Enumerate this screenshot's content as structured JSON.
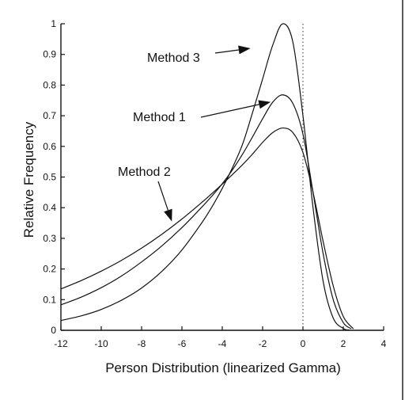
{
  "chart_data": {
    "type": "line",
    "title": "",
    "xlabel": "Person Distribution (linearized Gamma)",
    "ylabel": "Relative Frequency",
    "xlim": [
      -12,
      4
    ],
    "ylim": [
      0,
      1
    ],
    "x_ticks": [
      -12,
      -10,
      -8,
      -6,
      -4,
      -2,
      0,
      2,
      4
    ],
    "y_ticks": [
      0,
      0.1,
      0.2,
      0.3,
      0.4,
      0.5,
      0.6,
      0.7,
      0.8,
      0.9,
      1
    ],
    "reference_line_x": 0,
    "grid": false,
    "series": [
      {
        "name": "Method 1",
        "x": [
          -12,
          -11,
          -10,
          -9,
          -8,
          -7,
          -6,
          -5,
          -4.5,
          -4,
          -3.5,
          -3,
          -2.5,
          -2,
          -1.5,
          -1,
          -0.5,
          0,
          0.5,
          1,
          1.5,
          2,
          2.4
        ],
        "values": [
          0.083,
          0.108,
          0.139,
          0.177,
          0.223,
          0.275,
          0.335,
          0.403,
          0.439,
          0.478,
          0.523,
          0.574,
          0.631,
          0.69,
          0.744,
          0.768,
          0.74,
          0.64,
          0.45,
          0.25,
          0.1,
          0.025,
          0.005
        ]
      },
      {
        "name": "Method 2",
        "x": [
          -12,
          -11,
          -10,
          -9,
          -8,
          -7,
          -6,
          -5,
          -4.5,
          -4,
          -3.5,
          -3,
          -2.5,
          -2,
          -1.5,
          -1,
          -0.5,
          0,
          0.5,
          1,
          1.5,
          2,
          2.5
        ],
        "values": [
          0.135,
          0.162,
          0.193,
          0.228,
          0.268,
          0.313,
          0.363,
          0.418,
          0.447,
          0.477,
          0.508,
          0.54,
          0.575,
          0.613,
          0.645,
          0.66,
          0.645,
          0.58,
          0.45,
          0.29,
          0.145,
          0.045,
          0.005
        ]
      },
      {
        "name": "Method 3",
        "x": [
          -12,
          -11,
          -10,
          -9,
          -8,
          -7,
          -6,
          -5,
          -4.5,
          -4,
          -3.5,
          -3,
          -2.5,
          -2,
          -1.5,
          -1,
          -0.5,
          0,
          0.5,
          1,
          1.5,
          2,
          2.3
        ],
        "values": [
          0.032,
          0.047,
          0.068,
          0.098,
          0.138,
          0.192,
          0.262,
          0.352,
          0.404,
          0.463,
          0.53,
          0.606,
          0.71,
          0.82,
          0.93,
          1.0,
          0.94,
          0.7,
          0.4,
          0.16,
          0.04,
          0.006,
          0.001
        ]
      }
    ],
    "annotations": [
      {
        "text": "Method 3",
        "target": "Method 3",
        "arrow_to": [
          -2.6,
          0.92
        ]
      },
      {
        "text": "Method 1",
        "target": "Method 1",
        "arrow_to": [
          -1.6,
          0.745
        ]
      },
      {
        "text": "Method 2",
        "target": "Method 2",
        "arrow_to": [
          -6.5,
          0.355
        ]
      }
    ]
  }
}
